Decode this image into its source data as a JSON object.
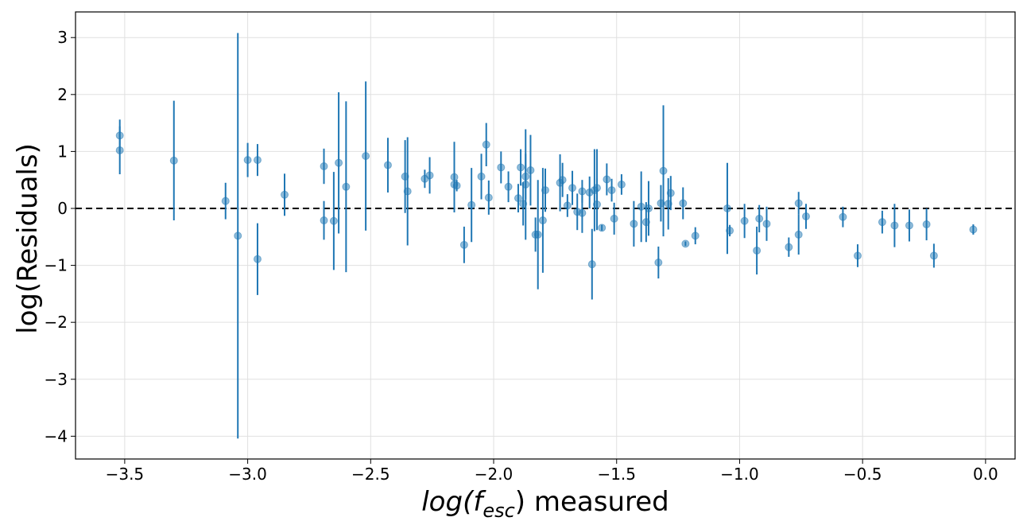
{
  "chart_data": {
    "type": "scatter",
    "title": "",
    "xlabel": "log(f_esc) measured",
    "xlabel_parts": {
      "fn": "log(",
      "base": "f",
      "sub": "esc",
      "close": ")",
      "suffix": " measured"
    },
    "ylabel": "log(Residuals)",
    "xlim": [
      -3.7,
      0.12
    ],
    "ylim": [
      -4.4,
      3.45
    ],
    "xticks": [
      -3.5,
      -3.0,
      -2.5,
      -2.0,
      -1.5,
      -1.0,
      -0.5,
      0.0
    ],
    "xtick_labels": [
      "−3.5",
      "−3.0",
      "−2.5",
      "−2.0",
      "−1.5",
      "−1.0",
      "−0.5",
      "0.0"
    ],
    "yticks": [
      3,
      2,
      1,
      0,
      -1,
      -2,
      -3,
      -4
    ],
    "ytick_labels": [
      "3",
      "2",
      "1",
      "0",
      "−1",
      "−2",
      "−3",
      "−4"
    ],
    "grid": true,
    "reference_line": {
      "y": 0,
      "style": "dashed",
      "color": "#000000"
    },
    "color": "#1f77b4",
    "points": [
      {
        "x": -3.52,
        "y": 1.28,
        "err": 0.28
      },
      {
        "x": -3.52,
        "y": 1.02,
        "err": 0.42
      },
      {
        "x": -3.3,
        "y": 0.84,
        "err": 1.05
      },
      {
        "x": -3.09,
        "y": 0.13,
        "err": 0.32
      },
      {
        "x": -3.04,
        "y": -0.48,
        "err": 3.56
      },
      {
        "x": -3.0,
        "y": 0.85,
        "err": 0.3
      },
      {
        "x": -2.96,
        "y": 0.85,
        "err": 0.28
      },
      {
        "x": -2.96,
        "y": -0.89,
        "err": 0.63
      },
      {
        "x": -2.85,
        "y": 0.24,
        "err": 0.37
      },
      {
        "x": -2.69,
        "y": 0.74,
        "err": 0.31
      },
      {
        "x": -2.69,
        "y": -0.21,
        "err": 0.34
      },
      {
        "x": -2.65,
        "y": -0.22,
        "err": 0.86
      },
      {
        "x": -2.63,
        "y": 0.8,
        "err": 1.24
      },
      {
        "x": -2.6,
        "y": 0.38,
        "err": 1.5
      },
      {
        "x": -2.52,
        "y": 0.92,
        "err": 1.31
      },
      {
        "x": -2.43,
        "y": 0.76,
        "err": 0.48
      },
      {
        "x": -2.36,
        "y": 0.56,
        "err": 0.64
      },
      {
        "x": -2.35,
        "y": 0.3,
        "err": 0.95
      },
      {
        "x": -2.28,
        "y": 0.52,
        "err": 0.16
      },
      {
        "x": -2.26,
        "y": 0.58,
        "err": 0.32
      },
      {
        "x": -2.16,
        "y": 0.55,
        "err": 0.62
      },
      {
        "x": -2.16,
        "y": 0.42,
        "err": 0.13
      },
      {
        "x": -2.15,
        "y": 0.4,
        "err": 0.1
      },
      {
        "x": -2.12,
        "y": -0.64,
        "err": 0.32
      },
      {
        "x": -2.09,
        "y": 0.06,
        "err": 0.65
      },
      {
        "x": -2.05,
        "y": 0.56,
        "err": 0.4
      },
      {
        "x": -2.03,
        "y": 1.12,
        "err": 0.38
      },
      {
        "x": -2.02,
        "y": 0.19,
        "err": 0.3
      },
      {
        "x": -1.97,
        "y": 0.72,
        "err": 0.28
      },
      {
        "x": -1.94,
        "y": 0.38,
        "err": 0.27
      },
      {
        "x": -1.9,
        "y": 0.18,
        "err": 0.25
      },
      {
        "x": -1.89,
        "y": 0.72,
        "err": 0.32
      },
      {
        "x": -1.88,
        "y": 0.08,
        "err": 0.38
      },
      {
        "x": -1.87,
        "y": 0.56,
        "err": 0.4
      },
      {
        "x": -1.87,
        "y": 0.42,
        "err": 0.97
      },
      {
        "x": -1.85,
        "y": 0.67,
        "err": 0.62
      },
      {
        "x": -1.83,
        "y": -0.46,
        "err": 0.3
      },
      {
        "x": -1.82,
        "y": -0.46,
        "err": 0.96
      },
      {
        "x": -1.8,
        "y": -0.21,
        "err": 0.92
      },
      {
        "x": -1.79,
        "y": 0.32,
        "err": 0.38
      },
      {
        "x": -1.73,
        "y": 0.45,
        "err": 0.5
      },
      {
        "x": -1.72,
        "y": 0.5,
        "err": 0.3
      },
      {
        "x": -1.7,
        "y": 0.05,
        "err": 0.2
      },
      {
        "x": -1.68,
        "y": 0.36,
        "err": 0.3
      },
      {
        "x": -1.66,
        "y": -0.06,
        "err": 0.32
      },
      {
        "x": -1.64,
        "y": 0.3,
        "err": 0.2
      },
      {
        "x": -1.64,
        "y": -0.08,
        "err": 0.35
      },
      {
        "x": -1.61,
        "y": 0.28,
        "err": 0.28
      },
      {
        "x": -1.6,
        "y": -0.98,
        "err": 0.62
      },
      {
        "x": -1.59,
        "y": 0.32,
        "err": 0.72
      },
      {
        "x": -1.58,
        "y": 0.36,
        "err": 0.68
      },
      {
        "x": -1.58,
        "y": 0.07,
        "err": 0.45
      },
      {
        "x": -1.56,
        "y": -0.34,
        "err": 0.05
      },
      {
        "x": -1.54,
        "y": 0.51,
        "err": 0.28
      },
      {
        "x": -1.52,
        "y": 0.32,
        "err": 0.2
      },
      {
        "x": -1.51,
        "y": -0.18,
        "err": 0.28
      },
      {
        "x": -1.48,
        "y": 0.42,
        "err": 0.18
      },
      {
        "x": -1.43,
        "y": -0.27,
        "err": 0.4
      },
      {
        "x": -1.4,
        "y": 0.03,
        "err": 0.62
      },
      {
        "x": -1.38,
        "y": -0.24,
        "err": 0.35
      },
      {
        "x": -1.37,
        "y": 0.0,
        "err": 0.48
      },
      {
        "x": -1.33,
        "y": -0.95,
        "err": 0.28
      },
      {
        "x": -1.32,
        "y": 0.09,
        "err": 0.32
      },
      {
        "x": -1.31,
        "y": 0.66,
        "err": 1.15
      },
      {
        "x": -1.29,
        "y": 0.08,
        "err": 0.45
      },
      {
        "x": -1.28,
        "y": 0.27,
        "err": 0.3
      },
      {
        "x": -1.23,
        "y": 0.09,
        "err": 0.28
      },
      {
        "x": -1.22,
        "y": -0.62,
        "err": 0.04
      },
      {
        "x": -1.18,
        "y": -0.48,
        "err": 0.15
      },
      {
        "x": -1.05,
        "y": 0.0,
        "err": 0.8
      },
      {
        "x": -1.04,
        "y": -0.39,
        "err": 0.1
      },
      {
        "x": -0.98,
        "y": -0.22,
        "err": 0.3
      },
      {
        "x": -0.93,
        "y": -0.74,
        "err": 0.42
      },
      {
        "x": -0.92,
        "y": -0.18,
        "err": 0.24
      },
      {
        "x": -0.89,
        "y": -0.27,
        "err": 0.3
      },
      {
        "x": -0.8,
        "y": -0.68,
        "err": 0.17
      },
      {
        "x": -0.76,
        "y": 0.09,
        "err": 0.2
      },
      {
        "x": -0.76,
        "y": -0.46,
        "err": 0.35
      },
      {
        "x": -0.73,
        "y": -0.14,
        "err": 0.22
      },
      {
        "x": -0.58,
        "y": -0.15,
        "err": 0.18
      },
      {
        "x": -0.52,
        "y": -0.83,
        "err": 0.2
      },
      {
        "x": -0.42,
        "y": -0.24,
        "err": 0.2
      },
      {
        "x": -0.37,
        "y": -0.3,
        "err": 0.38
      },
      {
        "x": -0.31,
        "y": -0.3,
        "err": 0.28
      },
      {
        "x": -0.24,
        "y": -0.28,
        "err": 0.28
      },
      {
        "x": -0.21,
        "y": -0.83,
        "err": 0.21
      },
      {
        "x": -0.05,
        "y": -0.37,
        "err": 0.09
      }
    ]
  }
}
